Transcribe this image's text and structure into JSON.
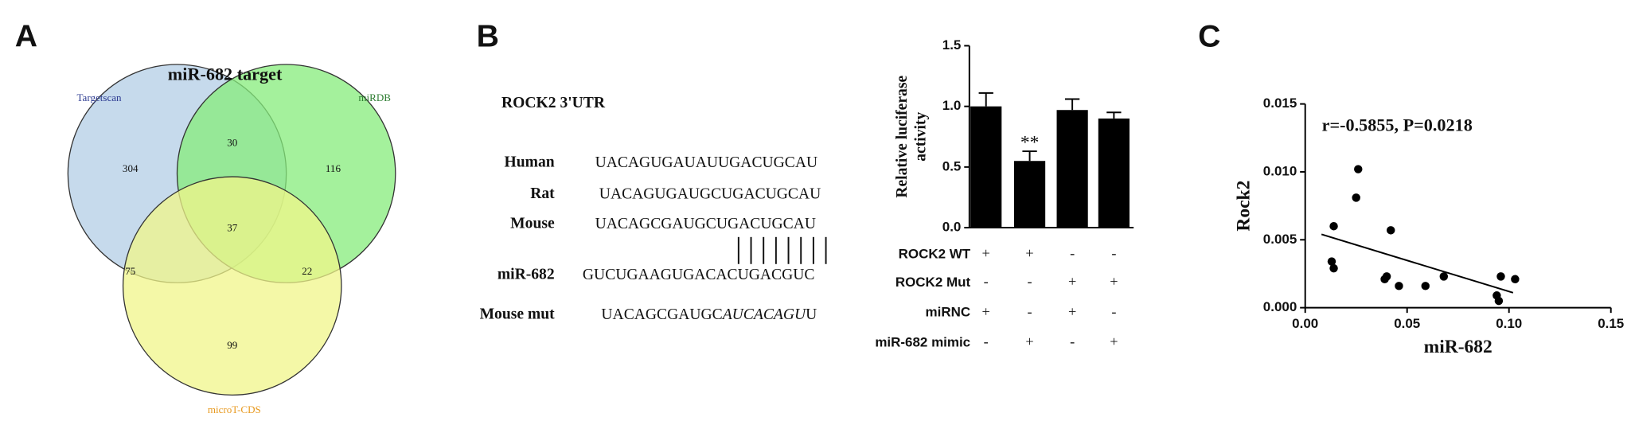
{
  "panel_labels": [
    "A",
    "B",
    "C"
  ],
  "alignment": {
    "title": "ROCK2 3'UTR",
    "rows": [
      {
        "label": "Human",
        "sequence": [
          "UACAGUGAUAUUGACUGCAU"
        ]
      },
      {
        "label": "Rat",
        "sequence": [
          "UACAGUGAUGCUGACUGCAU"
        ]
      },
      {
        "label": "Mouse",
        "sequence": [
          "UACAGCGAUGCUGACUGCAU"
        ]
      },
      {
        "label": "miR-682",
        "sequence": [
          "GUCUGAAGUGACACUGACGUC"
        ]
      },
      {
        "label": "Mouse mut",
        "sequence": [
          "UACAGCGAUGC",
          "AUCACAGU",
          "U"
        ]
      }
    ]
  },
  "chart_data": [
    {
      "type": "venn",
      "title": "miR-682 target",
      "sets": [
        {
          "name": "Targetscan",
          "color": "#b3cde5",
          "label_color": "#2b3990"
        },
        {
          "name": "miRDB",
          "color": "#86ec7b",
          "label_color": "#2e7d32"
        },
        {
          "name": "microT-CDS",
          "color": "#f0f68a",
          "label_color": "#e89a20"
        }
      ],
      "values": [
        304,
        116,
        99,
        30,
        75,
        22,
        37
      ]
    },
    {
      "type": "bar",
      "ylabel": [
        "Relative luciferase",
        "activity"
      ],
      "values": [
        1.0,
        0.55,
        0.97,
        0.9
      ],
      "errors": [
        0.11,
        0.08,
        0.09,
        0.05
      ],
      "color": "#000000",
      "ylim": [
        0,
        1.5
      ],
      "yticks": [
        {
          "value": 0,
          "label": "0.0"
        },
        {
          "value": 0.5,
          "label": "0.5"
        },
        {
          "value": 1,
          "label": "1.0"
        },
        {
          "value": 1.5,
          "label": "1.5"
        }
      ],
      "annotations": [
        {
          "text": "**",
          "bar": 1
        }
      ],
      "conditions": [
        {
          "name": "ROCK2 WT",
          "signs": [
            "+",
            "+",
            "-",
            "-"
          ]
        },
        {
          "name": "ROCK2 Mut",
          "signs": [
            "-",
            "-",
            "+",
            "+"
          ]
        },
        {
          "name": "miRNC",
          "signs": [
            "+",
            "-",
            "+",
            "-"
          ]
        },
        {
          "name": "miR-682 mimic",
          "signs": [
            "-",
            "+",
            "-",
            "+"
          ]
        }
      ]
    },
    {
      "type": "scatter",
      "xlabel": "miR-682",
      "ylabel": "Rock2",
      "annotation": "r=-0.5855, P=0.0218",
      "x": [
        0.013,
        0.014,
        0.014,
        0.026,
        0.025,
        0.042,
        0.039,
        0.04,
        0.046,
        0.059,
        0.068,
        0.096,
        0.094,
        0.095,
        0.103
      ],
      "y": [
        0.0034,
        0.0029,
        0.006,
        0.0102,
        0.0081,
        0.0057,
        0.0021,
        0.0023,
        0.0016,
        0.0016,
        0.0023,
        0.0023,
        0.0009,
        0.0005,
        0.0021
      ],
      "fit": {
        "x": [
          0.008,
          0.102
        ],
        "y": [
          0.0054,
          0.0011
        ]
      },
      "color": "#000000",
      "xlim": [
        0,
        0.15
      ],
      "xticks": [
        {
          "value": 0,
          "label": "0.00"
        },
        {
          "value": 0.05,
          "label": "0.05"
        },
        {
          "value": 0.1,
          "label": "0.10"
        },
        {
          "value": 0.15,
          "label": "0.15"
        }
      ],
      "ylim": [
        0,
        0.015
      ],
      "yticks": [
        {
          "value": 0,
          "label": "0.000"
        },
        {
          "value": 0.005,
          "label": "0.005"
        },
        {
          "value": 0.01,
          "label": "0.010"
        },
        {
          "value": 0.015,
          "label": "0.015"
        }
      ]
    }
  ]
}
